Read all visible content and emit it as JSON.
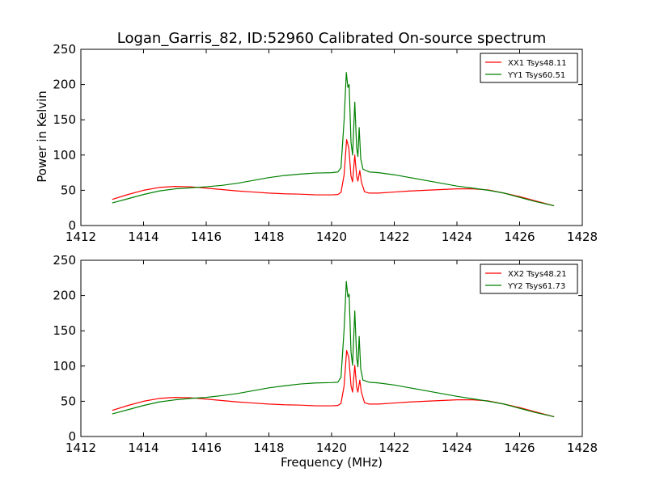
{
  "chart_data": [
    {
      "type": "line",
      "title": "Logan_Garris_82, ID:52960 Calibrated On-source spectrum",
      "xlabel": "",
      "ylabel": "Power in Kelvin",
      "xlim": [
        1412,
        1428
      ],
      "ylim": [
        0,
        250
      ],
      "xticks": [
        "1412",
        "1414",
        "1416",
        "1418",
        "1420",
        "1422",
        "1424",
        "1426",
        "1428"
      ],
      "yticks": [
        "0",
        "50",
        "100",
        "150",
        "200",
        "250"
      ],
      "legend_position": "top-right",
      "grid": false,
      "series": [
        {
          "name": "XX1 Tsys48.11",
          "color": "#ff0000",
          "points": [
            [
              1413.0,
              37
            ],
            [
              1413.5,
              44
            ],
            [
              1414.0,
              50
            ],
            [
              1414.5,
              54
            ],
            [
              1415.0,
              55.5
            ],
            [
              1415.5,
              55
            ],
            [
              1416.0,
              53
            ],
            [
              1416.5,
              51
            ],
            [
              1417.0,
              49
            ],
            [
              1417.5,
              47.5
            ],
            [
              1418.0,
              46
            ],
            [
              1418.5,
              45
            ],
            [
              1419.0,
              44.5
            ],
            [
              1419.5,
              43.5
            ],
            [
              1420.0,
              43.5
            ],
            [
              1420.2,
              44
            ],
            [
              1420.3,
              47
            ],
            [
              1420.4,
              72
            ],
            [
              1420.48,
              122
            ],
            [
              1420.55,
              110
            ],
            [
              1420.62,
              70
            ],
            [
              1420.67,
              62
            ],
            [
              1420.74,
              100
            ],
            [
              1420.8,
              70
            ],
            [
              1420.84,
              63
            ],
            [
              1420.9,
              78
            ],
            [
              1420.95,
              62
            ],
            [
              1421.05,
              48
            ],
            [
              1421.2,
              46
            ],
            [
              1421.5,
              46
            ],
            [
              1422.0,
              47.5
            ],
            [
              1422.5,
              49
            ],
            [
              1423.0,
              50
            ],
            [
              1423.5,
              51
            ],
            [
              1424.0,
              52
            ],
            [
              1424.5,
              52
            ],
            [
              1425.0,
              50.5
            ],
            [
              1425.5,
              46
            ],
            [
              1426.0,
              41
            ],
            [
              1426.5,
              35
            ],
            [
              1427.1,
              28
            ]
          ]
        },
        {
          "name": "YY1 Tsys60.51",
          "color": "#008000",
          "points": [
            [
              1413.0,
              32
            ],
            [
              1413.5,
              38
            ],
            [
              1414.0,
              44
            ],
            [
              1414.5,
              49
            ],
            [
              1415.0,
              52
            ],
            [
              1415.5,
              53.5
            ],
            [
              1416.0,
              55
            ],
            [
              1416.5,
              57
            ],
            [
              1417.0,
              60
            ],
            [
              1417.5,
              64
            ],
            [
              1418.0,
              68
            ],
            [
              1418.5,
              71
            ],
            [
              1419.0,
              73
            ],
            [
              1419.5,
              74.5
            ],
            [
              1420.0,
              75
            ],
            [
              1420.2,
              76
            ],
            [
              1420.3,
              82
            ],
            [
              1420.4,
              150
            ],
            [
              1420.47,
              217
            ],
            [
              1420.52,
              196
            ],
            [
              1420.56,
              200
            ],
            [
              1420.62,
              118
            ],
            [
              1420.67,
              100
            ],
            [
              1420.74,
              175
            ],
            [
              1420.8,
              110
            ],
            [
              1420.84,
              98
            ],
            [
              1420.88,
              139
            ],
            [
              1420.93,
              95
            ],
            [
              1421.0,
              80
            ],
            [
              1421.2,
              76
            ],
            [
              1421.5,
              75
            ],
            [
              1422.0,
              72
            ],
            [
              1422.5,
              68
            ],
            [
              1423.0,
              64
            ],
            [
              1423.5,
              60
            ],
            [
              1424.0,
              56
            ],
            [
              1424.5,
              53
            ],
            [
              1425.0,
              50
            ],
            [
              1425.5,
              46
            ],
            [
              1426.0,
              40
            ],
            [
              1426.5,
              34
            ],
            [
              1427.1,
              28
            ]
          ]
        }
      ]
    },
    {
      "type": "line",
      "title": "",
      "xlabel": "Frequency (MHz)",
      "ylabel": "",
      "xlim": [
        1412,
        1428
      ],
      "ylim": [
        0,
        250
      ],
      "xticks": [
        "1412",
        "1414",
        "1416",
        "1418",
        "1420",
        "1422",
        "1424",
        "1426",
        "1428"
      ],
      "yticks": [
        "0",
        "50",
        "100",
        "150",
        "200",
        "250"
      ],
      "legend_position": "top-right",
      "grid": false,
      "series": [
        {
          "name": "XX2 Tsys48.21",
          "color": "#ff0000",
          "points": [
            [
              1413.0,
              37
            ],
            [
              1413.5,
              44
            ],
            [
              1414.0,
              50
            ],
            [
              1414.5,
              54
            ],
            [
              1415.0,
              55.5
            ],
            [
              1415.5,
              55
            ],
            [
              1416.0,
              53
            ],
            [
              1416.5,
              51
            ],
            [
              1417.0,
              49
            ],
            [
              1417.5,
              47.5
            ],
            [
              1418.0,
              46
            ],
            [
              1418.5,
              45
            ],
            [
              1419.0,
              44.5
            ],
            [
              1419.5,
              43.5
            ],
            [
              1420.0,
              43.5
            ],
            [
              1420.2,
              44
            ],
            [
              1420.3,
              47
            ],
            [
              1420.4,
              72
            ],
            [
              1420.48,
              122
            ],
            [
              1420.55,
              112
            ],
            [
              1420.62,
              72
            ],
            [
              1420.67,
              63
            ],
            [
              1420.74,
              101
            ],
            [
              1420.8,
              70
            ],
            [
              1420.84,
              63
            ],
            [
              1420.9,
              80
            ],
            [
              1420.95,
              63
            ],
            [
              1421.05,
              48
            ],
            [
              1421.2,
              46
            ],
            [
              1421.5,
              46
            ],
            [
              1422.0,
              47.5
            ],
            [
              1422.5,
              49
            ],
            [
              1423.0,
              50
            ],
            [
              1423.5,
              51
            ],
            [
              1424.0,
              52
            ],
            [
              1424.5,
              52
            ],
            [
              1425.0,
              50.5
            ],
            [
              1425.5,
              46
            ],
            [
              1426.0,
              41
            ],
            [
              1426.5,
              35
            ],
            [
              1427.1,
              28
            ]
          ]
        },
        {
          "name": "YY2 Tsys61.73",
          "color": "#008000",
          "points": [
            [
              1413.0,
              32
            ],
            [
              1413.5,
              38
            ],
            [
              1414.0,
              44
            ],
            [
              1414.5,
              49
            ],
            [
              1415.0,
              52
            ],
            [
              1415.5,
              54
            ],
            [
              1416.0,
              55.5
            ],
            [
              1416.5,
              58
            ],
            [
              1417.0,
              61
            ],
            [
              1417.5,
              65
            ],
            [
              1418.0,
              69
            ],
            [
              1418.5,
              72
            ],
            [
              1419.0,
              74.5
            ],
            [
              1419.5,
              76
            ],
            [
              1420.0,
              76.5
            ],
            [
              1420.2,
              77
            ],
            [
              1420.3,
              84
            ],
            [
              1420.4,
              152
            ],
            [
              1420.47,
              220
            ],
            [
              1420.52,
              198
            ],
            [
              1420.56,
              202
            ],
            [
              1420.62,
              120
            ],
            [
              1420.67,
              101
            ],
            [
              1420.74,
              178
            ],
            [
              1420.8,
              112
            ],
            [
              1420.84,
              99
            ],
            [
              1420.88,
              142
            ],
            [
              1420.93,
              96
            ],
            [
              1421.0,
              80
            ],
            [
              1421.2,
              77
            ],
            [
              1421.5,
              76
            ],
            [
              1422.0,
              73
            ],
            [
              1422.5,
              69
            ],
            [
              1423.0,
              65
            ],
            [
              1423.5,
              61
            ],
            [
              1424.0,
              57
            ],
            [
              1424.5,
              53.5
            ],
            [
              1425.0,
              50
            ],
            [
              1425.5,
              46
            ],
            [
              1426.0,
              40
            ],
            [
              1426.5,
              34
            ],
            [
              1427.1,
              28
            ]
          ]
        }
      ]
    }
  ]
}
